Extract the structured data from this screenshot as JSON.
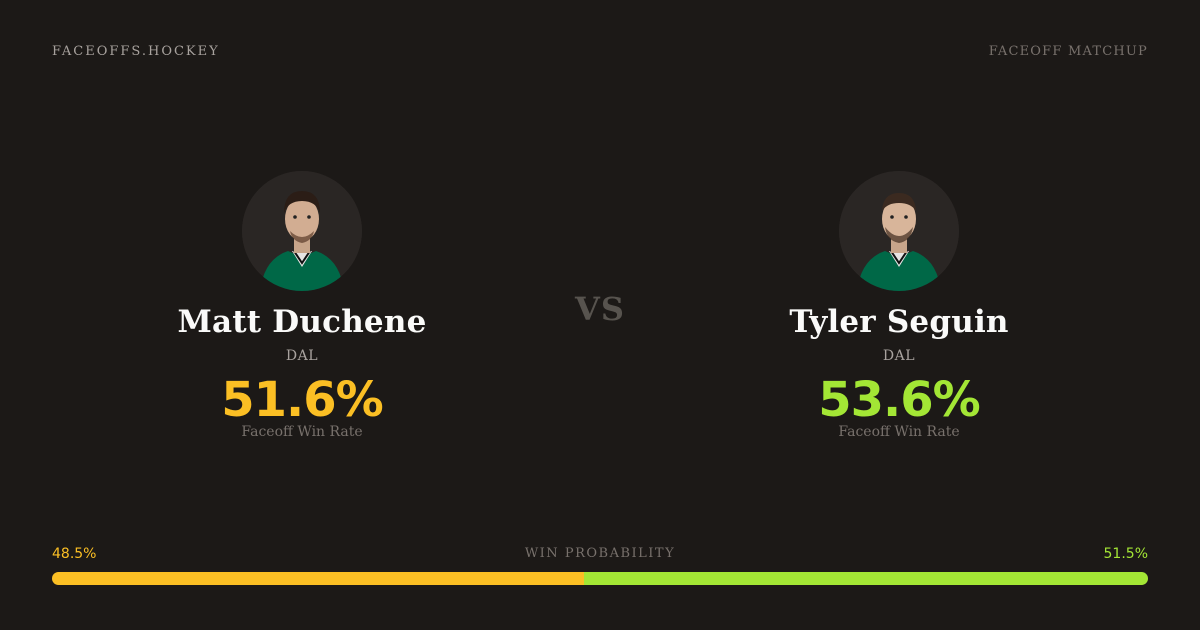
{
  "header": {
    "brand": "FACEOFFS.HOCKEY",
    "subtitle": "FACEOFF MATCHUP"
  },
  "vs_label": "VS",
  "players": [
    {
      "name": "Matt Duchene",
      "team": "DAL",
      "win_rate": "51.6%",
      "win_rate_label": "Faceoff Win Rate",
      "color": "#fbbf24",
      "jersey_color": "#006847"
    },
    {
      "name": "Tyler Seguin",
      "team": "DAL",
      "win_rate": "53.6%",
      "win_rate_label": "Faceoff Win Rate",
      "color": "#a3e635",
      "jersey_color": "#006847"
    }
  ],
  "win_probability": {
    "title": "WIN PROBABILITY",
    "left_label": "48.5%",
    "right_label": "51.5%",
    "left_value": 48.5,
    "right_value": 51.5
  },
  "colors": {
    "background": "#1c1917",
    "left_accent": "#fbbf24",
    "right_accent": "#a3e635"
  }
}
